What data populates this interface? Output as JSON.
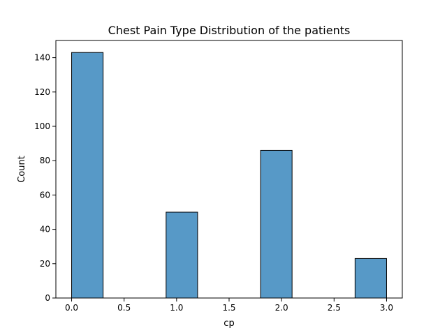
{
  "chart_data": {
    "type": "bar",
    "title": "Chest Pain Type Distribution of the patients",
    "xlabel": "cp",
    "ylabel": "Count",
    "xlim": [
      -0.15,
      3.15
    ],
    "ylim": [
      0,
      150
    ],
    "bar_color": "#5799C7",
    "edge_color": "#000000",
    "bins": [
      {
        "x0": 0.0,
        "x1": 0.3,
        "value": 143
      },
      {
        "x0": 0.3,
        "x1": 0.6,
        "value": 0
      },
      {
        "x0": 0.6,
        "x1": 0.9,
        "value": 0
      },
      {
        "x0": 0.9,
        "x1": 1.2,
        "value": 50
      },
      {
        "x0": 1.2,
        "x1": 1.5,
        "value": 0
      },
      {
        "x0": 1.5,
        "x1": 1.8,
        "value": 0
      },
      {
        "x0": 1.8,
        "x1": 2.1,
        "value": 86
      },
      {
        "x0": 2.1,
        "x1": 2.4,
        "value": 0
      },
      {
        "x0": 2.4,
        "x1": 2.7,
        "value": 0
      },
      {
        "x0": 2.7,
        "x1": 3.0,
        "value": 23
      }
    ],
    "x_ticks": [
      {
        "value": 0.0,
        "label": "0.0"
      },
      {
        "value": 0.5,
        "label": "0.5"
      },
      {
        "value": 1.0,
        "label": "1.0"
      },
      {
        "value": 1.5,
        "label": "1.5"
      },
      {
        "value": 2.0,
        "label": "2.0"
      },
      {
        "value": 2.5,
        "label": "2.5"
      },
      {
        "value": 3.0,
        "label": "3.0"
      }
    ],
    "y_ticks": [
      {
        "value": 0,
        "label": "0"
      },
      {
        "value": 20,
        "label": "20"
      },
      {
        "value": 40,
        "label": "40"
      },
      {
        "value": 60,
        "label": "60"
      },
      {
        "value": 80,
        "label": "80"
      },
      {
        "value": 100,
        "label": "100"
      },
      {
        "value": 120,
        "label": "120"
      },
      {
        "value": 140,
        "label": "140"
      }
    ],
    "grid": false,
    "legend": "none"
  }
}
